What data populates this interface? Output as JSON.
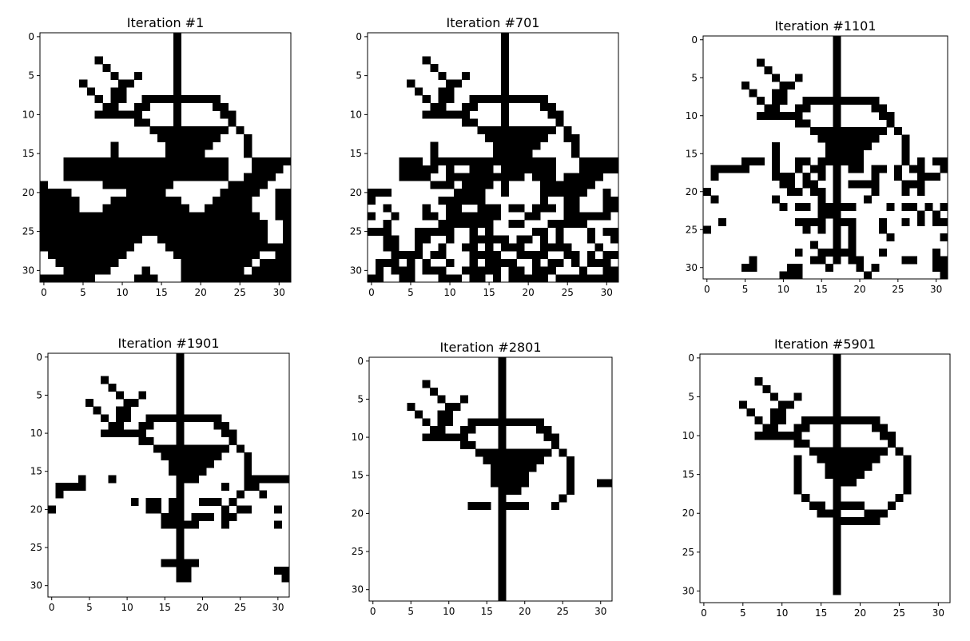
{
  "chart_data": [
    {
      "type": "heatmap",
      "title": "Iteration #1",
      "xlim": [
        0,
        31
      ],
      "ylim": [
        0,
        31
      ],
      "xticks": [
        0,
        5,
        10,
        15,
        20,
        25,
        30
      ],
      "yticks": [
        0,
        5,
        10,
        15,
        20,
        25,
        30
      ],
      "colormap": "binary",
      "grid": false,
      "rows": [
        "00000000000000000100000000000000",
        "00000000000000000100000000000000",
        "00000000000000000100000000000000",
        "00000001000000000100000000000000",
        "00000000100000000100000000000000",
        "00000000010010000100000000000000",
        "00000100001100000100000000000000",
        "00000010011000000100000000000000",
        "00000001011001111111111000000000",
        "00000000110011000100001100000000",
        "00000001111110000100000110000000",
        "00000000000011000100000010000000",
        "00000000000000111111111101000000",
        "00000000000000011111111000100000",
        "00000000010000001111110000100000",
        "00000000010000001111100000100000",
        "00011111111111111111111100011111",
        "00011111111111111111111100011110",
        "00011111111111111111111100111100",
        "10000000111111111000000011111000",
        "11110000000111110000000111110011",
        "11111000011111111100001111100011",
        "11111000111111111110011111100011",
        "11111111111111111111111111110011",
        "11111111111111111111111111111001",
        "11111111111111111111111111111001",
        "11111111111110011111111111111001",
        "11111111111100001111111111111111",
        "01111111111000000111111111110011",
        "00111111110000000011111111101111",
        "00011111100001000011111111011111",
        "11111110000011100011111111111111"
      ]
    },
    {
      "type": "heatmap",
      "title": "Iteration #701",
      "xlim": [
        0,
        31
      ],
      "ylim": [
        0,
        31
      ],
      "xticks": [
        0,
        5,
        10,
        15,
        20,
        25,
        30
      ],
      "yticks": [
        0,
        5,
        10,
        15,
        20,
        25,
        30
      ],
      "colormap": "binary",
      "grid": false,
      "rows": [
        "00000000000000000100000000000000",
        "00000000000000000100000000000000",
        "00000000000000000100000000000000",
        "00000001000000000100000000000000",
        "00000000100000000100000000000000",
        "00000000010010000100000000000000",
        "00000100001100000100000000000000",
        "00000010011000000100000000000000",
        "00000001011001111111111000000000",
        "00000000110011000100001100000000",
        "00000001111110000100000110000000",
        "00000000000011000100000010000000",
        "00000000000000111111111101000000",
        "00000000000000011111111001100000",
        "00000000100000001111110000100000",
        "00000000100000001111100000100000",
        "00001110111111111111111100011111",
        "00001111101001110111111100011111",
        "00001111001111111111011101111100",
        "00000000111011110100001111111000",
        "11100000000111100100001111110010",
        "10000000011111100000001001100011",
        "00100001001100111011011101100011",
        "10010001101111111000110001111110",
        "00100000011111110011000111110000",
        "11100011111001010000011010001011",
        "00110011001001111101101010001001",
        "00110010010011010111001111000100",
        "00011110110001111001111001101011",
        "01110101001001011110010110101110",
        "01011101110011111011011100010011",
        "11001100011101101011111011111111"
      ]
    },
    {
      "type": "heatmap",
      "title": "Iteration #1101",
      "xlim": [
        0,
        31
      ],
      "ylim": [
        0,
        31
      ],
      "xticks": [
        0,
        5,
        10,
        15,
        20,
        25,
        30
      ],
      "yticks": [
        0,
        5,
        10,
        15,
        20,
        25,
        30
      ],
      "colormap": "binary",
      "grid": false,
      "rows": [
        "00000000000000000100000000000000",
        "00000000000000000100000000000000",
        "00000000000000000100000000000000",
        "00000001000000000100000000000000",
        "00000000100000000100000000000000",
        "00000000010010000100000000000000",
        "00000100001100000100000000000000",
        "00000010011000000100000000000000",
        "00000001011001111111111000000000",
        "00000000110011000100001100000000",
        "00000001111110000100000110000000",
        "00000000000011000100000010000000",
        "00000000000000111111111101000000",
        "00000000000000011111111000100000",
        "00000000010000001111110000100000",
        "00000000010000001111100000100000",
        "00000111010011011111100000101011",
        "01111100010010110101101101011001",
        "01000000011101010100001001001110",
        "00000000001101100101111000111000",
        "10000000000110110100001000101000",
        "01000000010000010100010000000000",
        "00000000001011011111000010110101",
        "00000000000000011100000000001010",
        "00100000000011110111000100101011",
        "10000000000001010101000100000000",
        "00000000000000000101000010000001",
        "00000000000000100101000000000000",
        "00000000000010011111000100000010",
        "00000010000000110101100000110011",
        "00000110000110001000101000000011",
        "00000000001110000000010000000001"
      ]
    },
    {
      "type": "heatmap",
      "title": "Iteration #1901",
      "xlim": [
        0,
        31
      ],
      "ylim": [
        0,
        31
      ],
      "xticks": [
        0,
        5,
        10,
        15,
        20,
        25,
        30
      ],
      "yticks": [
        0,
        5,
        10,
        15,
        20,
        25,
        30
      ],
      "colormap": "binary",
      "grid": false,
      "rows": [
        "00000000000000000100000000000000",
        "00000000000000000100000000000000",
        "00000000000000000100000000000000",
        "00000001000000000100000000000000",
        "00000000100000000100000000000000",
        "00000000010010000100000000000000",
        "00000100001100000100000000000000",
        "00000010011000000100000000000000",
        "00000001011001111111111000000000",
        "00000000110011000100001100000000",
        "00000001111110000100000110000000",
        "00000000000011000100000010000000",
        "00000000000000111111111101000000",
        "00000000000000011111111000100000",
        "00000000000000001111110000100000",
        "00000000000000001111100000100000",
        "00001000100000000111000000111111",
        "01111000000000000100000100110000",
        "01000000000000000100000001001000",
        "00000000000101101100111010000000",
        "10000000000001101100000101100010",
        "00000000000000011101110110000000",
        "00000000000000011111000100000010",
        "00000000000000000100000000000000",
        "00000000000000000100000000000000",
        "00000000000000000100000000000000",
        "00000000000000000100000000000000",
        "00000000000000011111000000000000",
        "00000000000000000110000000000011",
        "00000000000000000110000000000001",
        "00000000000000000000000000000000",
        "00000000000000000000000000000000"
      ]
    },
    {
      "type": "heatmap",
      "title": "Iteration #2801",
      "xlim": [
        0,
        31
      ],
      "ylim": [
        0,
        31
      ],
      "xticks": [
        0,
        5,
        10,
        15,
        20,
        25,
        30
      ],
      "yticks": [
        0,
        5,
        10,
        15,
        20,
        25,
        30
      ],
      "colormap": "binary",
      "grid": false,
      "rows": [
        "00000000000000000100000000000000",
        "00000000000000000100000000000000",
        "00000000000000000100000000000000",
        "00000001000000000100000000000000",
        "00000000100000000100000000000000",
        "00000000010010000100000000000000",
        "00000100001100000100000000000000",
        "00000010011000000100000000000000",
        "00000001011001111111111000000000",
        "00000000110011000100001100000000",
        "00000001111110000100000110000000",
        "00000000000011000100000010000000",
        "00000000000000111111111101000000",
        "00000000000000011111111000100000",
        "00000000000000001111110000100000",
        "00000000000000001111100000100000",
        "00000000000000001111100000100011",
        "00000000000000000111000000100000",
        "00000000000000000100000001000000",
        "00000000000001110111100010000000",
        "00000000000000000100000000000000",
        "00000000000000000100000000000000",
        "00000000000000000100000000000000",
        "00000000000000000100000000000000",
        "00000000000000000100000000000000",
        "00000000000000000100000000000000",
        "00000000000000000100000000000000",
        "00000000000000000100000000000000",
        "00000000000000000100000000000000",
        "00000000000000000100000000000000",
        "00000000000000000100000000000000",
        "00000000000000000100000000000000"
      ]
    },
    {
      "type": "heatmap",
      "title": "Iteration #5901",
      "xlim": [
        0,
        31
      ],
      "ylim": [
        0,
        31
      ],
      "xticks": [
        0,
        5,
        10,
        15,
        20,
        25,
        30
      ],
      "yticks": [
        0,
        5,
        10,
        15,
        20,
        25,
        30
      ],
      "colormap": "binary",
      "grid": false,
      "rows": [
        "00000000000000000100000000000000",
        "00000000000000000100000000000000",
        "00000000000000000100000000000000",
        "00000001000000000100000000000000",
        "00000000100000000100000000000000",
        "00000000010010000100000000000000",
        "00000100001100000100000000000000",
        "00000010011000000100000000000000",
        "00000001011001111111111000000000",
        "00000000110011000100001100000000",
        "00000001111110000100000110000000",
        "00000000000011000100000010000000",
        "00000000000000111111111101000000",
        "00000000000010011111111000100000",
        "00000000000010001111110000100000",
        "00000000000010001111100000100000",
        "00000000000010000111000000100000",
        "00000000000010000100000000100000",
        "00000000000001000100000001000000",
        "00000000000000110111100010000000",
        "00000000000000011100011100000000",
        "00000000000000000111111000000000",
        "00000000000000000100000000000000",
        "00000000000000000100000000000000",
        "00000000000000000100000000000000",
        "00000000000000000100000000000000",
        "00000000000000000100000000000000",
        "00000000000000000100000000000000",
        "00000000000000000100000000000000",
        "00000000000000000100000000000000",
        "00000000000000000100000000000000",
        "00000000000000000000000000000000"
      ]
    }
  ]
}
